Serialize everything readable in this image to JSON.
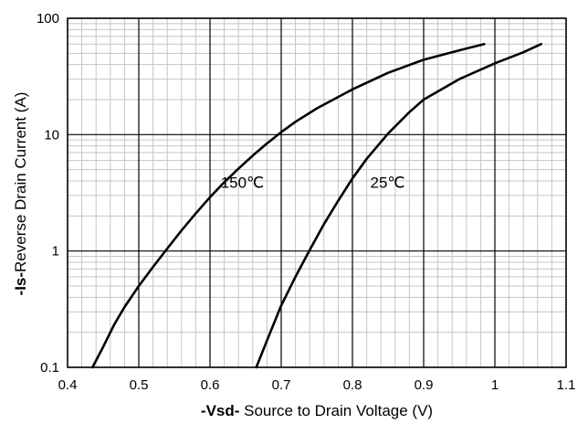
{
  "chart_data": {
    "type": "line",
    "title": "",
    "xlabel_bold": "-Vsd-",
    "xlabel_rest": " Source to Drain Voltage (V)",
    "ylabel_bold": "-Is-",
    "ylabel_rest": "Reverse  Drain Current (A)",
    "xlim": [
      0.4,
      1.1
    ],
    "ylim": [
      0.1,
      100
    ],
    "yscale": "log",
    "grid": true,
    "xticks": [
      0.4,
      0.5,
      0.6,
      0.7,
      0.8,
      0.9,
      1.0,
      1.1
    ],
    "xtick_labels": [
      "0.4",
      "0.5",
      "0.6",
      "0.7",
      "0.8",
      "0.9",
      "1",
      "1.1"
    ],
    "yticks": [
      0.1,
      1,
      10,
      100
    ],
    "ytick_labels": [
      "0.1",
      "1",
      "10",
      "100"
    ],
    "series": [
      {
        "name": "150℃",
        "x": [
          0.435,
          0.45,
          0.465,
          0.48,
          0.5,
          0.52,
          0.54,
          0.56,
          0.58,
          0.6,
          0.62,
          0.64,
          0.66,
          0.68,
          0.7,
          0.72,
          0.75,
          0.8,
          0.85,
          0.9,
          0.95,
          0.985
        ],
        "y": [
          0.1,
          0.15,
          0.23,
          0.33,
          0.5,
          0.73,
          1.05,
          1.5,
          2.1,
          2.9,
          3.9,
          5.1,
          6.6,
          8.4,
          10.5,
          12.9,
          16.8,
          24.5,
          34,
          44,
          53,
          60
        ]
      },
      {
        "name": "25℃",
        "x": [
          0.665,
          0.68,
          0.7,
          0.72,
          0.74,
          0.76,
          0.78,
          0.8,
          0.82,
          0.85,
          0.88,
          0.9,
          0.95,
          1.0,
          1.04,
          1.065
        ],
        "y": [
          0.1,
          0.17,
          0.34,
          0.6,
          1.02,
          1.7,
          2.7,
          4.2,
          6.2,
          10.2,
          15.6,
          20,
          30,
          41,
          51,
          60
        ]
      }
    ],
    "annotations": [
      {
        "text": "150℃",
        "x": 0.615,
        "y": 3.5
      },
      {
        "text": "25℃",
        "x": 0.825,
        "y": 3.5
      }
    ]
  }
}
